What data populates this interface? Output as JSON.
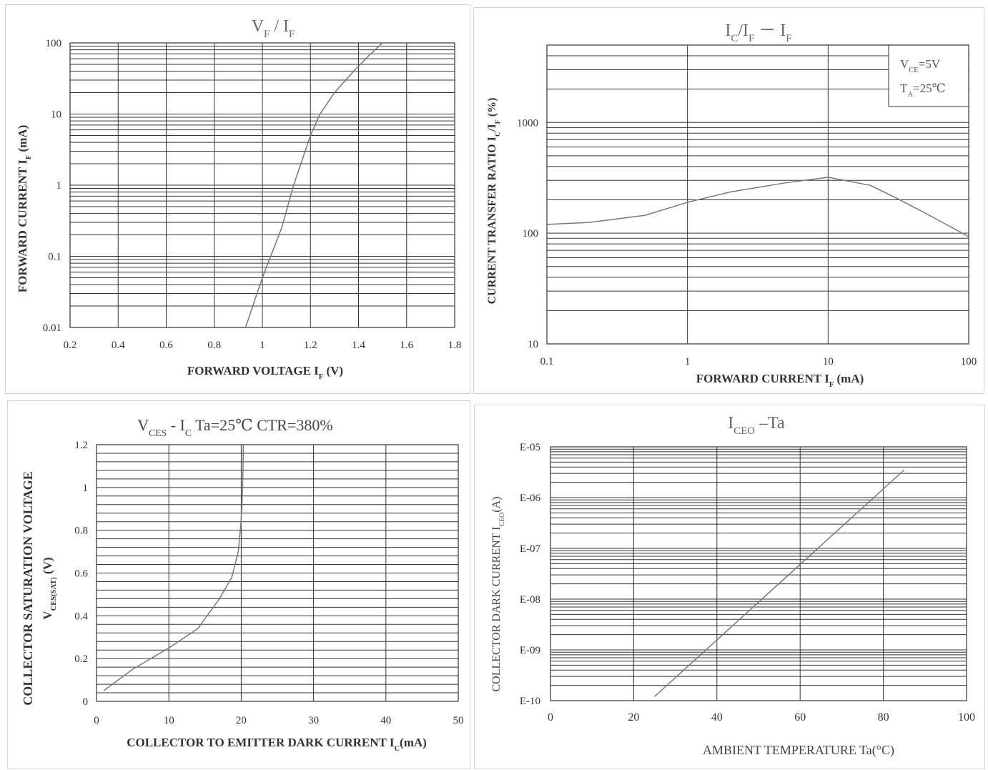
{
  "chart_data": [
    {
      "type": "line",
      "title": "V_F / I_F",
      "title_parts": {
        "a": "V",
        "a_sub": "F",
        "sep": "/",
        "b": "I",
        "b_sub": "F"
      },
      "xlabel": "FORWARD VOLTAGE I",
      "xlabel_sub": "F",
      "xlabel_tail": " (V)",
      "ylabel": "FORWARD CURRENT I",
      "ylabel_sub": "F",
      "ylabel_tail": " (mA)",
      "xlim": [
        0.2,
        1.8
      ],
      "ylim": [
        0.01,
        100
      ],
      "yscale": "log",
      "x_ticks": [
        "0.2",
        "0.4",
        "0.6",
        "0.8",
        "1",
        "1.2",
        "1.4",
        "1.6",
        "1.8"
      ],
      "y_ticks": [
        "0.01",
        "0.1",
        "1",
        "10",
        "100"
      ],
      "grid": true,
      "series": [
        {
          "x": [
            0.93,
            1.0,
            1.08,
            1.13,
            1.2,
            1.24,
            1.3,
            1.38,
            1.45,
            1.5
          ],
          "y": [
            0.01,
            0.05,
            0.25,
            1,
            5,
            10,
            20,
            40,
            70,
            100
          ]
        }
      ]
    },
    {
      "type": "line",
      "title": "I_C/I_F - I_F",
      "title_parts": {
        "a": "I",
        "a_sub": "C",
        "sep": "/",
        "b": "I",
        "b_sub": "F",
        "dash": "－",
        "c": "I",
        "c_sub": "F"
      },
      "xlabel": "FORWARD CURRENT I",
      "xlabel_sub": "F",
      "xlabel_tail": " (mA)",
      "ylabel": "CURRENT TRANSFER RATIO I",
      "ylabel_sub": "C",
      "ylabel_tail": "/I",
      "ylabel_sub2": "F",
      "ylabel_tail2": " (%)",
      "xlim": [
        0.1,
        100
      ],
      "ylim": [
        10,
        5000
      ],
      "xscale": "log",
      "yscale": "log",
      "x_ticks": [
        "0.1",
        "1",
        "10",
        "100"
      ],
      "y_ticks": [
        "10",
        "100",
        "1000"
      ],
      "grid": true,
      "legend": {
        "line1": "V",
        "line1_sub": "CE",
        "line1_tail": "=5V",
        "line2": "T",
        "line2_sub": "A",
        "line2_tail": "=25℃",
        "position": "top-right"
      },
      "series": [
        {
          "x": [
            0.1,
            0.2,
            0.5,
            1,
            2,
            5,
            10,
            20,
            30,
            50,
            100
          ],
          "y": [
            120,
            125,
            145,
            190,
            235,
            285,
            320,
            270,
            210,
            150,
            93
          ]
        }
      ]
    },
    {
      "type": "line",
      "title": "V_CES - I_C   Ta=25℃  CTR=380%",
      "title_parts": {
        "a": "V",
        "a_sub": "CES",
        "sep": " - ",
        "b": "I",
        "b_sub": "C",
        "tail": "  Ta=25℃  CTR=380%"
      },
      "xlabel": "COLLECTOR TO EMITTER DARK CURRENT I",
      "xlabel_sub": "C",
      "xlabel_tail": "(mA)",
      "ylabel": "COLLECTOR SATURATION VOLTAGE",
      "ylabel2": "V",
      "ylabel2_sub": "CES(SAT)",
      "ylabel2_tail": " (V)",
      "xlim": [
        0,
        50
      ],
      "ylim": [
        0,
        1.2
      ],
      "x_ticks": [
        "0",
        "10",
        "20",
        "30",
        "40",
        "50"
      ],
      "y_ticks": [
        "0",
        "0.2",
        "0.4",
        "0.6",
        "0.8",
        "1",
        "1.2"
      ],
      "grid": true,
      "series": [
        {
          "x": [
            1,
            5,
            10,
            14,
            17,
            18.7,
            19.6,
            20.0,
            20.2,
            20.3
          ],
          "y": [
            0.05,
            0.15,
            0.25,
            0.34,
            0.48,
            0.58,
            0.7,
            0.85,
            1.0,
            1.2
          ]
        }
      ]
    },
    {
      "type": "line",
      "title": "I_CEO -Ta",
      "title_parts": {
        "a": "I",
        "a_sub": "CEO",
        "tail": " –Ta"
      },
      "xlabel": "AMBIENT TEMPERATURE Ta(°C)",
      "ylabel": "COLLECTOR DARK CURRENT  I",
      "ylabel_sub": "CEO",
      "ylabel_tail": "(A)",
      "xlim": [
        0,
        100
      ],
      "ylim": [
        1e-10,
        1e-05
      ],
      "yscale": "log",
      "x_ticks": [
        "0",
        "20",
        "40",
        "60",
        "80",
        "100"
      ],
      "y_ticks": [
        "E-10",
        "E-09",
        "E-08",
        "E-07",
        "E-06",
        "E-05"
      ],
      "grid": true,
      "series": [
        {
          "x": [
            25,
            85
          ],
          "y": [
            1.2e-10,
            3.5e-06
          ]
        }
      ]
    }
  ],
  "colors": {
    "grid": "#333333",
    "line": "#777777",
    "text": "#333333",
    "border": "#d2d2d2"
  }
}
